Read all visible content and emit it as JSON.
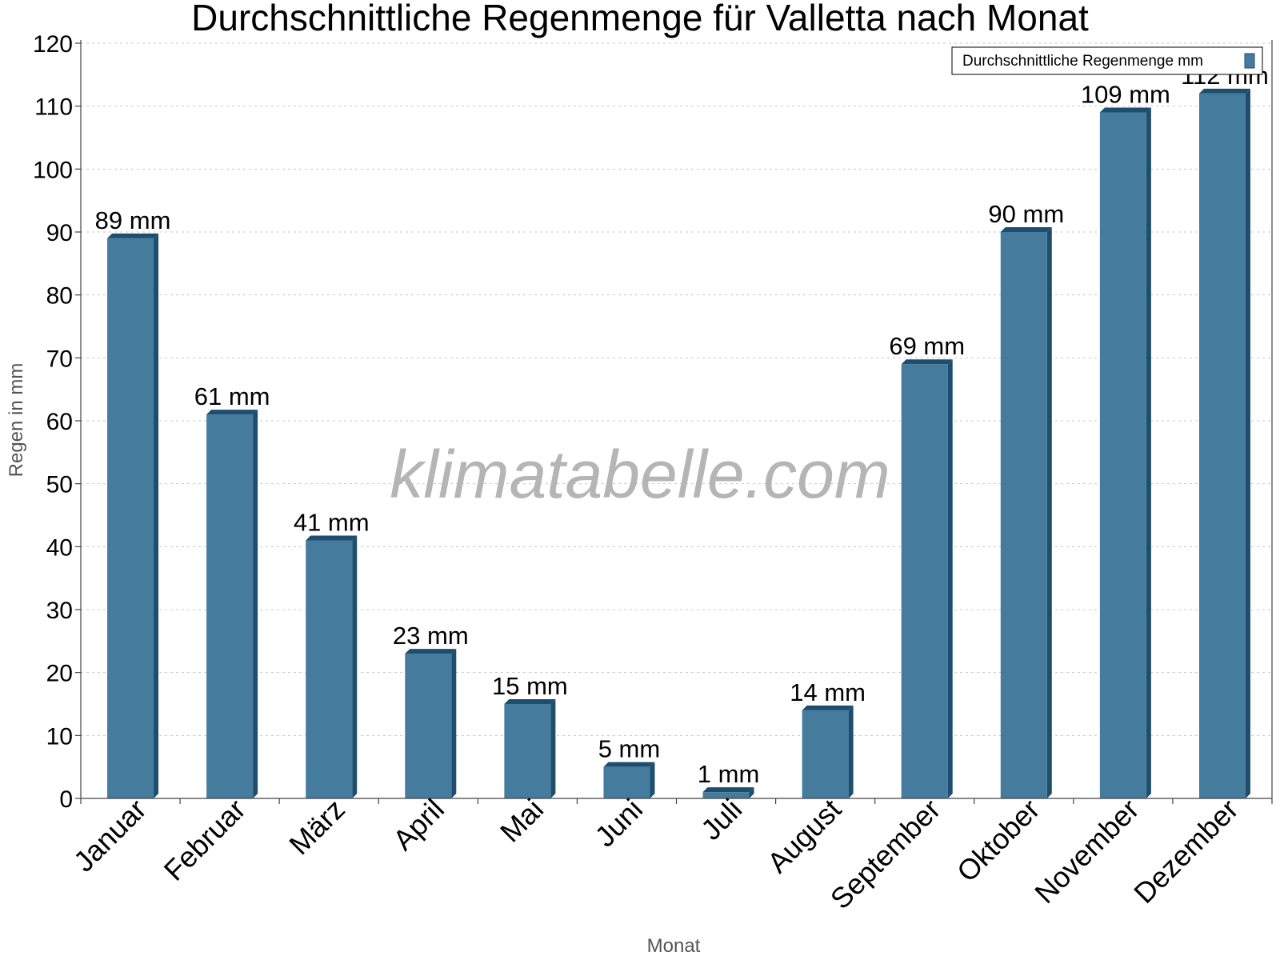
{
  "watermark": "klimatabelle.com",
  "chart_data": {
    "type": "bar",
    "title": "Durchschnittliche Regenmenge für Valletta nach Monat",
    "xlabel": "Monat",
    "ylabel": "Regen in mm",
    "ylim": [
      0,
      120
    ],
    "yticks": [
      0,
      10,
      20,
      30,
      40,
      50,
      60,
      70,
      80,
      90,
      100,
      110,
      120
    ],
    "grid": true,
    "legend_position": "top-right",
    "categories": [
      "Januar",
      "Februar",
      "März",
      "April",
      "Mai",
      "Juni",
      "Juli",
      "August",
      "September",
      "Oktober",
      "November",
      "Dezember"
    ],
    "series": [
      {
        "name": "Durchschnittliche Regenmenge mm",
        "color": "#457b9d",
        "side_color": "#1d4e6e",
        "values": [
          89,
          61,
          41,
          23,
          15,
          5,
          1,
          14,
          69,
          90,
          109,
          112
        ],
        "labels": [
          "89 mm",
          "61 mm",
          "41 mm",
          "23 mm",
          "15 mm",
          "5 mm",
          "1 mm",
          "14 mm",
          "69 mm",
          "90 mm",
          "109 mm",
          "112 mm"
        ]
      }
    ]
  }
}
